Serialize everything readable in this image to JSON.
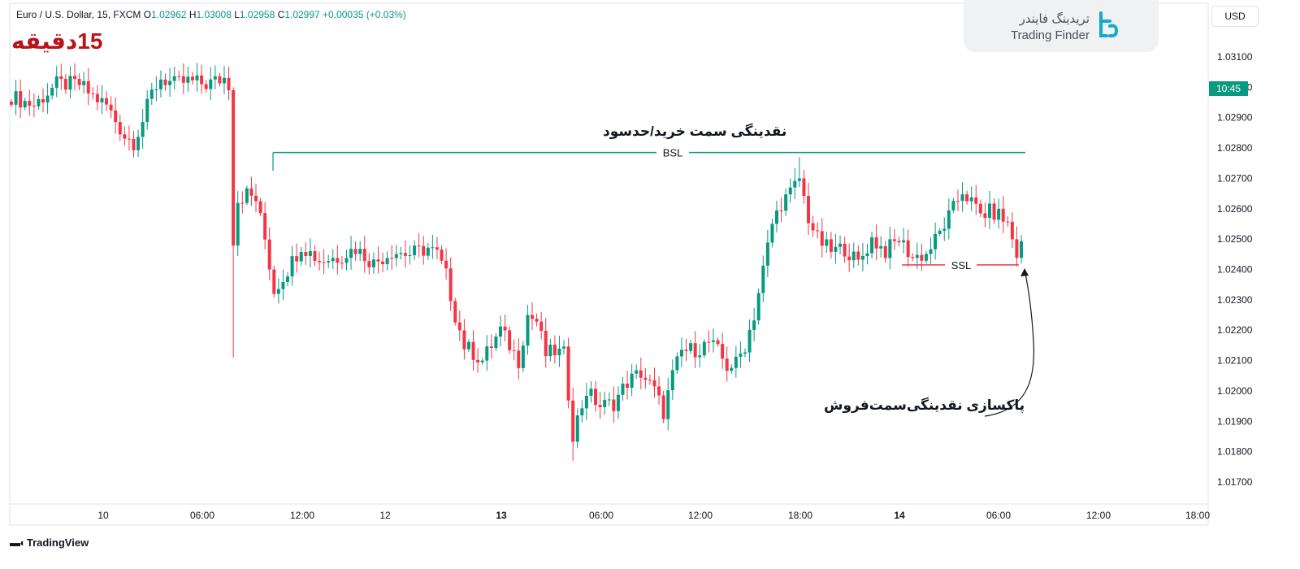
{
  "header": {
    "symbol": "Euro / U.S. Dollar, 15, FXCM",
    "open_label": "O",
    "open": "1.02962",
    "high_label": "H",
    "high": "1.03008",
    "low_label": "L",
    "low": "1.02958",
    "close_label": "C",
    "close": "1.02997",
    "change": "+0.00035 (+0.03%)"
  },
  "timeframe_badge": "15دقیقه",
  "logo": {
    "fa": "تریدینگ فایندر",
    "en": "Trading Finder"
  },
  "currency_button": "USD",
  "time_badge": "10:45",
  "footer_brand": "TradingView",
  "colors": {
    "up": "#089981",
    "down": "#f23645",
    "bsl_line": "#089981",
    "ssl_line": "#f23645",
    "badge_red": "#b8141c",
    "axis_text": "#131722",
    "grid": "#e0e3eb"
  },
  "icons": [
    "tradingfinder-logo-icon",
    "tradingview-logo-icon"
  ],
  "chart_data": {
    "type": "candlestick",
    "title": "Euro / U.S. Dollar, 15, FXCM",
    "ylim": [
      1.0165,
      1.0315
    ],
    "y_ticks": [
      "1.03100",
      "1.03000",
      "1.02900",
      "1.02800",
      "1.02700",
      "1.02600",
      "1.02500",
      "1.02400",
      "1.02300",
      "1.02200",
      "1.02100",
      "1.02000",
      "1.01900",
      "1.01800",
      "1.01700"
    ],
    "x_ticks": [
      "10",
      "06:00",
      "12:00",
      "12",
      "13",
      "06:00",
      "12:00",
      "18:00",
      "14",
      "06:00",
      "12:00",
      "18:00"
    ],
    "grid": false,
    "annotations": {
      "bsl_title": "نقدینگی سمت خرید/حدسود",
      "bsl_label": "BSL",
      "bsl_price": 1.02785,
      "ssl_label": "SSL",
      "ssl_price": 1.02415,
      "sweep_label": "پاکسازی نقدینگی‌سمت‌فروش"
    },
    "waypoints": [
      [
        0,
        1.0297
      ],
      [
        5,
        1.0294
      ],
      [
        10,
        1.0301
      ],
      [
        15,
        1.0301
      ],
      [
        18,
        1.0297
      ],
      [
        21,
        1.0294
      ],
      [
        25,
        1.0284
      ],
      [
        27,
        1.0282
      ],
      [
        29,
        1.0289
      ],
      [
        31,
        1.0298
      ],
      [
        33,
        1.0303
      ],
      [
        36,
        1.0301
      ],
      [
        39,
        1.0302
      ],
      [
        43,
        1.0301
      ],
      [
        47,
        1.0303
      ],
      [
        48,
        1.0301
      ],
      [
        49,
        1.025
      ],
      [
        50,
        1.0263
      ],
      [
        52,
        1.0265
      ],
      [
        54,
        1.0263
      ],
      [
        56,
        1.025
      ],
      [
        58,
        1.0233
      ],
      [
        61,
        1.024
      ],
      [
        64,
        1.0248
      ],
      [
        68,
        1.0243
      ],
      [
        72,
        1.0244
      ],
      [
        76,
        1.0247
      ],
      [
        80,
        1.0242
      ],
      [
        84,
        1.0246
      ],
      [
        88,
        1.0245
      ],
      [
        92,
        1.0247
      ],
      [
        94,
        1.0245
      ],
      [
        96,
        1.0238
      ],
      [
        98,
        1.0225
      ],
      [
        100,
        1.0215
      ],
      [
        104,
        1.021
      ],
      [
        108,
        1.022
      ],
      [
        112,
        1.021
      ],
      [
        114,
        1.0225
      ],
      [
        116,
        1.0223
      ],
      [
        118,
        1.0212
      ],
      [
        120,
        1.0213
      ],
      [
        122,
        1.0212
      ],
      [
        124,
        1.0186
      ],
      [
        127,
        1.02
      ],
      [
        130,
        1.0195
      ],
      [
        133,
        1.0196
      ],
      [
        136,
        1.0203
      ],
      [
        139,
        1.0206
      ],
      [
        142,
        1.02
      ],
      [
        144,
        1.0193
      ],
      [
        146,
        1.0205
      ],
      [
        148,
        1.0213
      ],
      [
        152,
        1.0214
      ],
      [
        154,
        1.0216
      ],
      [
        156,
        1.0213
      ],
      [
        158,
        1.0208
      ],
      [
        160,
        1.0209
      ],
      [
        162,
        1.0215
      ],
      [
        164,
        1.0225
      ],
      [
        166,
        1.024
      ],
      [
        168,
        1.0255
      ],
      [
        170,
        1.0262
      ],
      [
        172,
        1.0265
      ],
      [
        174,
        1.027
      ],
      [
        176,
        1.0257
      ],
      [
        178,
        1.025
      ],
      [
        181,
        1.0246
      ],
      [
        184,
        1.0247
      ],
      [
        187,
        1.0242
      ],
      [
        190,
        1.025
      ],
      [
        193,
        1.0246
      ],
      [
        196,
        1.025
      ],
      [
        199,
        1.0244
      ],
      [
        202,
        1.0245
      ],
      [
        205,
        1.0252
      ],
      [
        208,
        1.026
      ],
      [
        210,
        1.0266
      ],
      [
        212,
        1.0262
      ],
      [
        214,
        1.0258
      ],
      [
        216,
        1.0259
      ],
      [
        218,
        1.0258
      ],
      [
        220,
        1.0255
      ],
      [
        222,
        1.0245
      ],
      [
        223,
        1.0248
      ]
    ],
    "candle_count": 224
  }
}
